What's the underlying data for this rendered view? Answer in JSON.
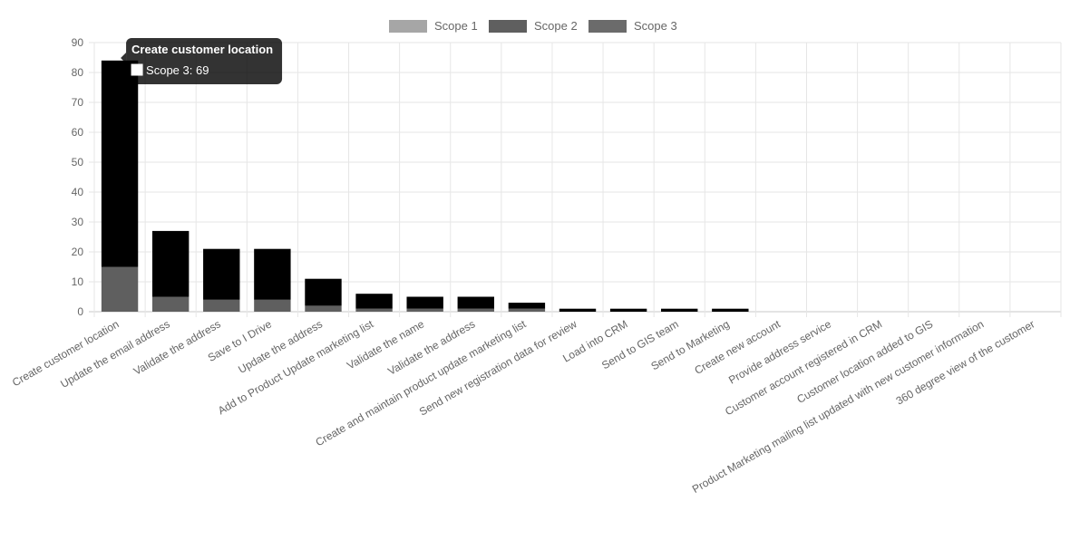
{
  "chart_data": {
    "type": "bar",
    "stacked": true,
    "title": "",
    "xlabel": "",
    "ylabel": "",
    "ylim": [
      0,
      90
    ],
    "yticks": [
      0,
      10,
      20,
      30,
      40,
      50,
      60,
      70,
      80,
      90
    ],
    "grid": true,
    "legend_position": "top",
    "categories": [
      "Create customer location",
      "Update the email address",
      "Validate the address",
      "Save to I Drive",
      "Update the address",
      "Add to Product Update marketing list",
      "Validate the name",
      "Validate the address",
      "Create and maintain product update marketing list",
      "Send new registration data for review",
      "Load into CRM",
      "Send to GIS team",
      "Send to Marketing",
      "Create new account",
      "Provide address service",
      "Customer account registered in CRM",
      "Customer location added to GIS",
      "Product Marketing mailing list updated with new customer information",
      "360 degree view of the customer"
    ],
    "series": [
      {
        "name": "Scope 1",
        "color": "#a6a6a6",
        "values": [
          0,
          0,
          0,
          0,
          0,
          0,
          0,
          0,
          0,
          0,
          0,
          0,
          0,
          0,
          0,
          0,
          0,
          0,
          0
        ]
      },
      {
        "name": "Scope 2",
        "color": "#5f5f5f",
        "values": [
          15,
          5,
          4,
          4,
          2,
          1,
          1,
          1,
          1,
          0,
          0,
          0,
          0,
          0,
          0,
          0,
          0,
          0,
          0
        ]
      },
      {
        "name": "Scope 3",
        "color": "#000000",
        "values": [
          69,
          22,
          17,
          17,
          9,
          5,
          4,
          4,
          2,
          1,
          1,
          1,
          1,
          0,
          0,
          0,
          0,
          0,
          0
        ]
      }
    ],
    "legend_swatch_colors": [
      "#a6a6a6",
      "#5f5f5f",
      "#6b6b6b"
    ],
    "tooltip": {
      "title": "Create customer location",
      "label": "Scope 3: 69",
      "category_index": 0
    }
  }
}
